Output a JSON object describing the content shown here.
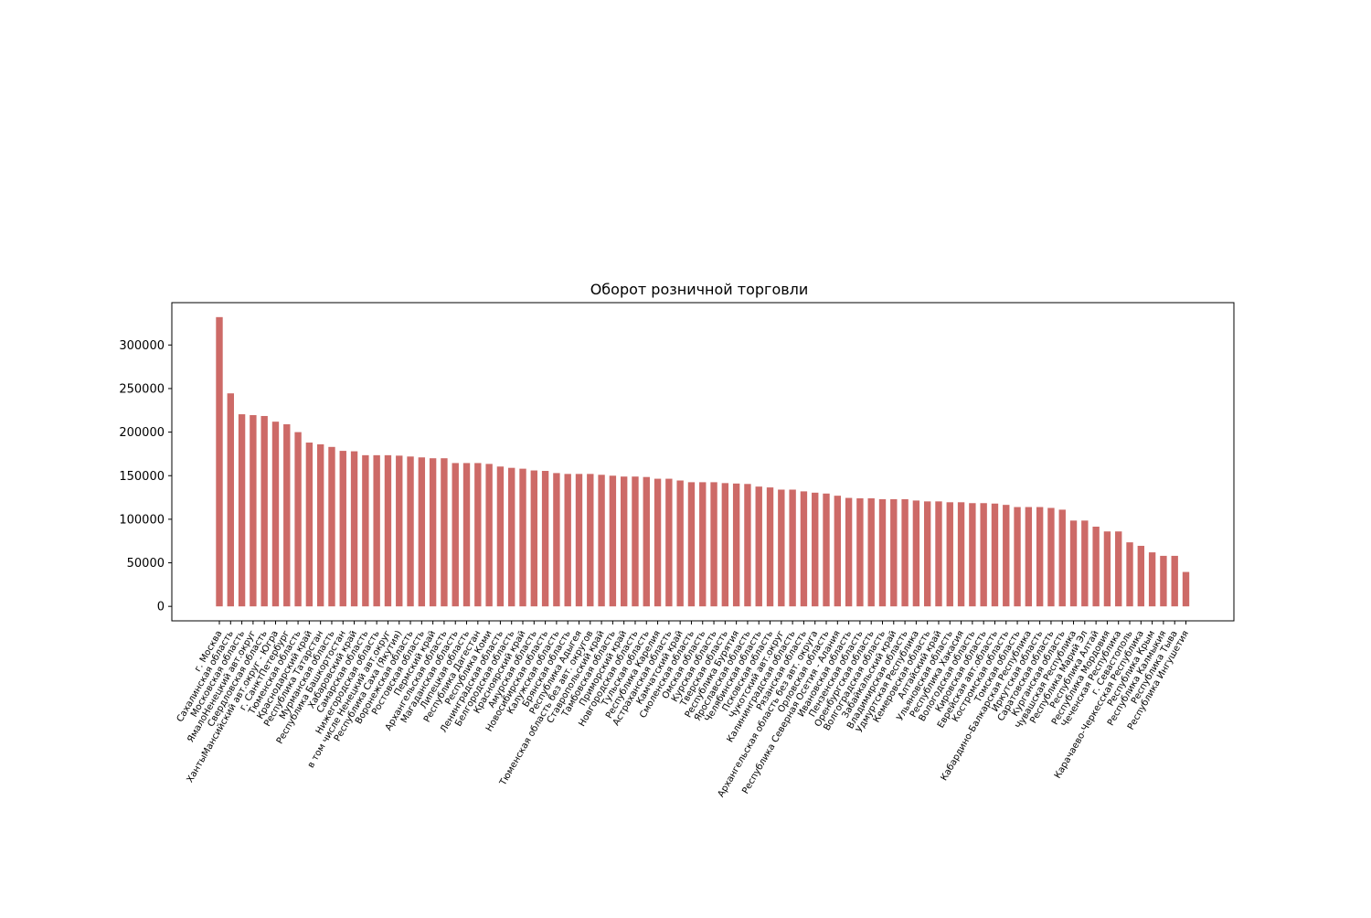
{
  "chart_data": {
    "type": "bar",
    "title": "Оборот розничной торговли",
    "xlabel": "",
    "ylabel": "",
    "ylim": [
      -16600,
      348600
    ],
    "yticks": [
      0,
      50000,
      100000,
      150000,
      200000,
      250000,
      300000
    ],
    "ytick_labels": [
      "0",
      "50000",
      "100000",
      "150000",
      "200000",
      "250000",
      "300000"
    ],
    "bar_color": "#cd6a67",
    "grid": false,
    "legend": "none",
    "categories": [
      "г. Москва",
      "Сахалинская область",
      "Московская область",
      "ЯмалоНенецкий авт.округ",
      "Свердловская область",
      "ХантыМансийский авт.округ - Югра",
      "г. СанктПетербург",
      "Тюменская область",
      "Краснодарский край",
      "Республика Татарстан",
      "Мурманская область",
      "Республика Башкортостан",
      "Хабаровский край",
      "Самарская область",
      "Нижегородская область",
      "в том числе Ненецкий авт.округ",
      "Республика Саха (Якутия)",
      "Воронежская область",
      "Ростовская область",
      "Пермский край",
      "Архангельская область",
      "Магаданская область",
      "Липецкая область",
      "Республика Дагестан",
      "Республика Коми",
      "Ленинградская область",
      "Белгородская область",
      "Красноярский край",
      "Амурская область",
      "Новосибирская область",
      "Калужская область",
      "Брянская область",
      "Республика Адыгея",
      "Тюменская область без авт. округов",
      "Ставропольский край",
      "Тамбовская область",
      "Приморский край",
      "Новгородская область",
      "Тульская область",
      "Республика Карелия",
      "Астраханская область",
      "Камчатский край",
      "Смоленская область",
      "Омская область",
      "Курская область",
      "Тверская область",
      "Республика Бурятия",
      "Ярославская область",
      "Челябинская область",
      "Псковская область",
      "Чукотский авт.округ",
      "Калининградская область",
      "Рязанская область",
      "Архангельская область без авт. округа",
      "Орловская область",
      "Республика Северная Осетия - Алания",
      "Ивановская область",
      "Пензенская область",
      "Оренбургская область",
      "Волгоградская область",
      "Забайкальский край",
      "Владимирская область",
      "Удмуртская Республика",
      "Кемеровская область",
      "Алтайский край",
      "Ульяновская область",
      "Республика Хакасия",
      "Вологодская область",
      "Кировская область",
      "Еврейская авт.область",
      "Костромская область",
      "Томская область",
      "Кабардино-Балкарская Республика",
      "Иркутская область",
      "Саратовская область",
      "Курганская область",
      "Чувашская Республика",
      "Республика Марий Эл",
      "Республика Алтай",
      "Республика Мордовия",
      "Чеченская Республика",
      "г. Севастополь",
      "Карачаево-Черкесская Республика",
      "Республика Крым",
      "Республика Калмыкия",
      "Республика Тыва",
      "Республика Ингушетия"
    ],
    "values": [
      332000,
      244500,
      220500,
      219500,
      218500,
      212000,
      209000,
      200000,
      188000,
      186000,
      183000,
      178500,
      178000,
      173500,
      173500,
      173500,
      173000,
      172000,
      171000,
      170000,
      170000,
      164500,
      164500,
      164500,
      163500,
      160500,
      159000,
      158000,
      156000,
      155500,
      153000,
      152000,
      152000,
      152000,
      151000,
      150000,
      149000,
      149000,
      148500,
      146500,
      146500,
      144500,
      142500,
      142500,
      142500,
      141500,
      141000,
      140500,
      137500,
      136500,
      134000,
      134000,
      132000,
      130500,
      129500,
      127000,
      124500,
      124000,
      124000,
      123000,
      123000,
      123000,
      121500,
      120500,
      120500,
      119500,
      119500,
      118500,
      118500,
      118000,
      116500,
      114000,
      114000,
      114000,
      113000,
      111000,
      98500,
      98500,
      91500,
      86000,
      86000,
      73500,
      69500,
      62000,
      58000,
      58000,
      39500
    ]
  }
}
